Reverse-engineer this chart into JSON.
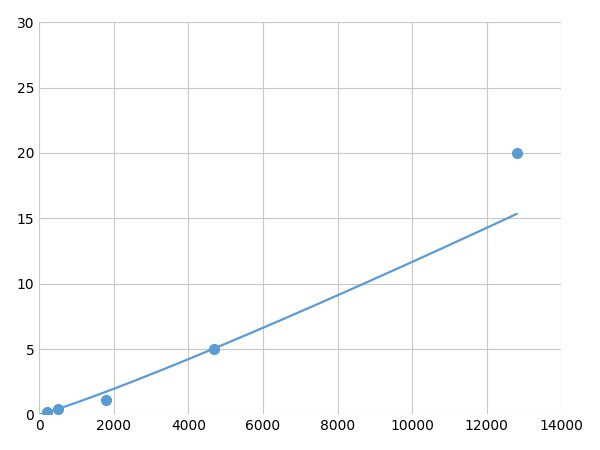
{
  "x_data": [
    200,
    500,
    1800,
    4700,
    12800
  ],
  "y_data": [
    0.2,
    0.4,
    1.1,
    5.0,
    20.0
  ],
  "line_color": "#5b9bd5",
  "marker_color": "#5b9bd5",
  "marker_size": 7,
  "line_width": 1.6,
  "xlim": [
    0,
    14000
  ],
  "ylim": [
    0,
    30
  ],
  "xticks": [
    0,
    2000,
    4000,
    6000,
    8000,
    10000,
    12000,
    14000
  ],
  "yticks": [
    0,
    5,
    10,
    15,
    20,
    25,
    30
  ],
  "grid_color": "#c8c8c8",
  "background_color": "#ffffff",
  "tick_label_fontsize": 10,
  "figure_width": 6.0,
  "figure_height": 4.5,
  "dpi": 100
}
